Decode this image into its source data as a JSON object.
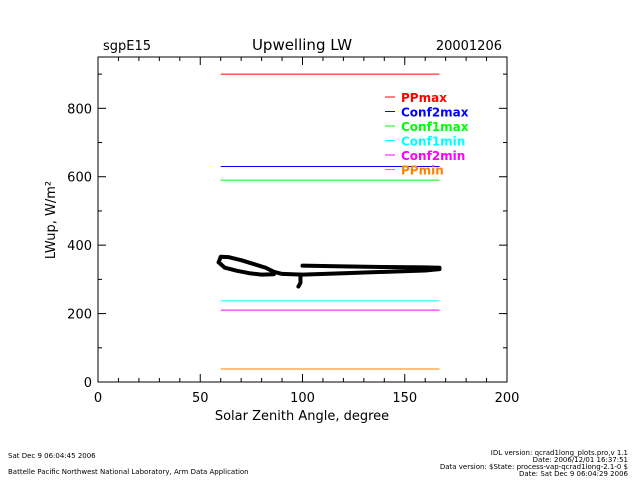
{
  "header": {
    "station": "sgpE15",
    "title": "Upwelling LW",
    "date": "20001206"
  },
  "footer": {
    "left_date": "Sat Dec  9 06:04:45 2006",
    "left_org": "Battelle Pacific Northwest National Laboratory, Arm Data Application",
    "right_lines": [
      "IDL version: qcrad1long_plots.pro,v 1.1",
      "Date: 2006/12/01 16:37:51",
      "Data version: $State: process-vap-qcrad1long-2.1-0 $",
      "Date: Sat Dec  9 06:04:29 2006"
    ]
  },
  "chart_data": {
    "type": "line",
    "title": "Upwelling LW",
    "xlabel": "Solar Zenith Angle, degree",
    "ylabel": "LWup, W/m²",
    "xlim": [
      0,
      200
    ],
    "ylim": [
      0,
      950
    ],
    "xticks": [
      0,
      50,
      100,
      150,
      200
    ],
    "yticks": [
      0,
      200,
      400,
      600,
      800
    ],
    "grid": false,
    "legend_position": "top-right",
    "limits": [
      {
        "name": "PPmax",
        "value": 900,
        "color": "#ff0000",
        "x": [
          60,
          167
        ]
      },
      {
        "name": "Conf2max",
        "value": 630,
        "color": "#0000ff",
        "x": [
          60,
          167
        ]
      },
      {
        "name": "Conf1max",
        "value": 590,
        "color": "#00ff00",
        "x": [
          60,
          167
        ]
      },
      {
        "name": "Conf1min",
        "value": 237,
        "color": "#00ffff",
        "x": [
          60,
          167
        ]
      },
      {
        "name": "Conf2min",
        "value": 210,
        "color": "#ff00ff",
        "x": [
          60,
          167
        ]
      },
      {
        "name": "PPmin",
        "value": 38,
        "color": "#ff8000",
        "x": [
          60,
          167
        ]
      }
    ],
    "data_color": "#000000",
    "data_segments": [
      {
        "x": [
          59,
          60,
          64,
          70,
          76,
          82,
          86,
          90,
          100,
          120,
          140,
          160,
          167
        ],
        "y": [
          350,
          366,
          365,
          356,
          345,
          334,
          322,
          316,
          314,
          318,
          322,
          326,
          330
        ]
      },
      {
        "x": [
          59,
          62,
          68,
          74,
          80,
          86
        ],
        "y": [
          350,
          334,
          325,
          318,
          314,
          315
        ]
      },
      {
        "x": [
          100,
          120,
          140,
          160,
          167
        ],
        "y": [
          340,
          338,
          336,
          335,
          334
        ]
      },
      {
        "x": [
          99,
          99,
          98
        ],
        "y": [
          314,
          290,
          279
        ]
      }
    ]
  }
}
